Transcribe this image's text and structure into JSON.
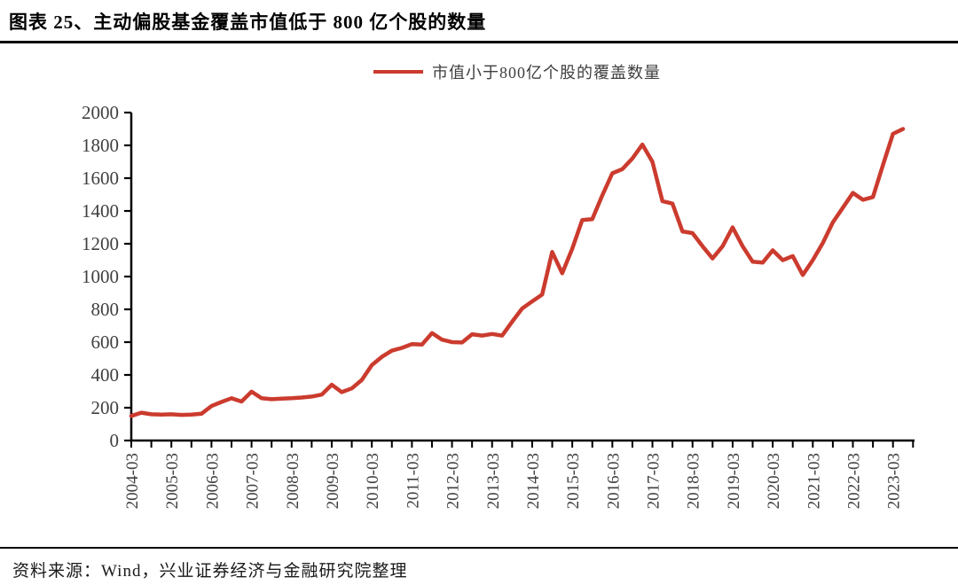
{
  "figure": {
    "title": "图表 25、主动偏股基金覆盖市值低于 800 亿个股的数量",
    "source": "资料来源：Wind，兴业证券经济与金融研究院整理"
  },
  "chart_data": {
    "type": "line",
    "title": "图表 25、主动偏股基金覆盖市值低于 800 亿个股的数量",
    "legend": [
      "市值小于800亿个股的覆盖数量"
    ],
    "legend_position": "top-center",
    "line_color": "#cb3b2e",
    "axis_color": "#000000",
    "tick_label_color": "#3f3f3f",
    "grid": false,
    "ylim": [
      0,
      2000
    ],
    "yticks": [
      0,
      200,
      400,
      600,
      800,
      1000,
      1200,
      1400,
      1600,
      1800,
      2000
    ],
    "xtick_labels": [
      "2004-03",
      "2005-03",
      "2006-03",
      "2007-03",
      "2008-03",
      "2009-03",
      "2010-03",
      "2011-03",
      "2012-03",
      "2013-03",
      "2014-03",
      "2015-03",
      "2016-03",
      "2017-03",
      "2018-03",
      "2019-03",
      "2020-03",
      "2021-03",
      "2022-03",
      "2023-03"
    ],
    "x": [
      "2004-03",
      "2004-06",
      "2004-09",
      "2004-12",
      "2005-03",
      "2005-06",
      "2005-09",
      "2005-12",
      "2006-03",
      "2006-06",
      "2006-09",
      "2006-12",
      "2007-03",
      "2007-06",
      "2007-09",
      "2007-12",
      "2008-03",
      "2008-06",
      "2008-09",
      "2008-12",
      "2009-03",
      "2009-06",
      "2009-09",
      "2009-12",
      "2010-03",
      "2010-06",
      "2010-09",
      "2010-12",
      "2011-03",
      "2011-06",
      "2011-09",
      "2011-12",
      "2012-03",
      "2012-06",
      "2012-09",
      "2012-12",
      "2013-03",
      "2013-06",
      "2013-09",
      "2013-12",
      "2014-03",
      "2014-06",
      "2014-09",
      "2014-12",
      "2015-03",
      "2015-06",
      "2015-09",
      "2015-12",
      "2016-03",
      "2016-06",
      "2016-09",
      "2016-12",
      "2017-03",
      "2017-06",
      "2017-09",
      "2017-12",
      "2018-03",
      "2018-06",
      "2018-09",
      "2018-12",
      "2019-03",
      "2019-06",
      "2019-09",
      "2019-12",
      "2020-03",
      "2020-06",
      "2020-09",
      "2020-12",
      "2021-03",
      "2021-06",
      "2021-09",
      "2021-12",
      "2022-03",
      "2022-06",
      "2022-09",
      "2022-12",
      "2023-03",
      "2023-06"
    ],
    "series": [
      {
        "name": "市值小于800亿个股的覆盖数量",
        "values": [
          150,
          170,
          160,
          158,
          160,
          156,
          158,
          163,
          210,
          235,
          258,
          238,
          298,
          258,
          252,
          255,
          258,
          262,
          268,
          280,
          340,
          295,
          318,
          370,
          460,
          510,
          548,
          565,
          588,
          585,
          655,
          615,
          600,
          598,
          648,
          640,
          650,
          640,
          725,
          805,
          848,
          890,
          1150,
          1020,
          1170,
          1345,
          1350,
          1495,
          1630,
          1655,
          1720,
          1805,
          1700,
          1460,
          1445,
          1275,
          1265,
          1185,
          1110,
          1185,
          1300,
          1185,
          1090,
          1085,
          1160,
          1100,
          1125,
          1010,
          1100,
          1205,
          1330,
          1420,
          1510,
          1468,
          1485,
          1680,
          1870,
          1900
        ]
      }
    ]
  }
}
